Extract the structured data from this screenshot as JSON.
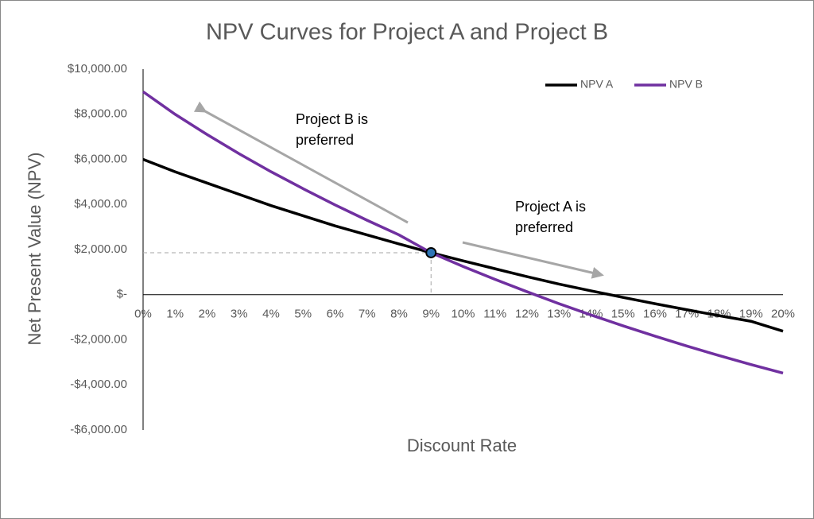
{
  "chart_data": {
    "type": "line",
    "title": "NPV Curves for Project A and Project B",
    "x_label": "Discount Rate",
    "y_label": "Net Present Value (NPV)",
    "categories": [
      "0%",
      "1%",
      "2%",
      "3%",
      "4%",
      "5%",
      "6%",
      "7%",
      "8%",
      "9%",
      "10%",
      "11%",
      "12%",
      "13%",
      "14%",
      "15%",
      "16%",
      "17%",
      "18%",
      "19%",
      "20%"
    ],
    "series": [
      {
        "name": "NPV A",
        "color": "#000000",
        "values": [
          6000,
          5450,
          4950,
          4450,
          3950,
          3500,
          3050,
          2650,
          2250,
          1860,
          1500,
          1150,
          800,
          470,
          170,
          -120,
          -400,
          -670,
          -930,
          -1180,
          -1620
        ]
      },
      {
        "name": "NPV B",
        "color": "#7030a0",
        "values": [
          9000,
          8000,
          7100,
          6250,
          5450,
          4700,
          3980,
          3300,
          2650,
          1860,
          1250,
          680,
          130,
          -400,
          -900,
          -1380,
          -1840,
          -2280,
          -2700,
          -3100,
          -3480
        ]
      }
    ],
    "ylim": [
      -6000,
      10000
    ],
    "yticks": [
      {
        "value": -6000,
        "label": "-$6,000.00"
      },
      {
        "value": -4000,
        "label": "-$4,000.00"
      },
      {
        "value": -2000,
        "label": "-$2,000.00"
      },
      {
        "value": 0,
        "label": "$-"
      },
      {
        "value": 2000,
        "label": "$2,000.00"
      },
      {
        "value": 4000,
        "label": "$4,000.00"
      },
      {
        "value": 6000,
        "label": "$6,000.00"
      },
      {
        "value": 8000,
        "label": "$8,000.00"
      },
      {
        "value": 10000,
        "label": "$10,000.00"
      }
    ],
    "grid": false,
    "legend_position": "top-right",
    "annotations": [
      "Project B is preferred",
      "Project A is preferred"
    ]
  }
}
